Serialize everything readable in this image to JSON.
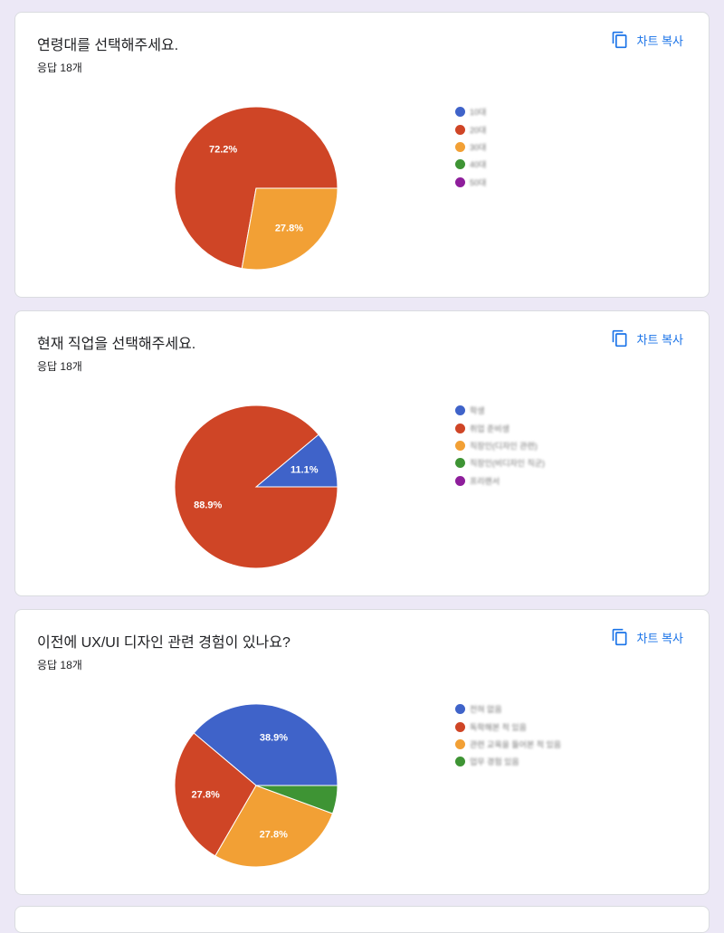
{
  "copy_label": "차트 복사",
  "cards": [
    {
      "title": "연령대를 선택해주세요.",
      "count": "응답 18개",
      "chart_data": {
        "type": "pie",
        "categories": [
          "10대",
          "20대",
          "30대",
          "40대",
          "50대"
        ],
        "values": [
          0,
          72.2,
          27.8,
          0,
          0
        ],
        "slice_labels": [
          "",
          "72.2%",
          "27.8%",
          "",
          ""
        ],
        "colors": [
          "#3f63c9",
          "#cf4526",
          "#f2a035",
          "#3e9434",
          "#8e1e9b"
        ],
        "legend_position": "right"
      }
    },
    {
      "title": "현재 직업을 선택해주세요.",
      "count": "응답 18개",
      "chart_data": {
        "type": "pie",
        "categories": [
          "학생",
          "취업 준비생",
          "직장인(디자인 관련)",
          "직장인(비디자인 직군)",
          "프리랜서"
        ],
        "values": [
          11.1,
          88.9,
          0,
          0,
          0
        ],
        "slice_labels": [
          "11.1%",
          "88.9%",
          "",
          "",
          ""
        ],
        "colors": [
          "#3f63c9",
          "#cf4526",
          "#f2a035",
          "#3e9434",
          "#8e1e9b"
        ],
        "legend_position": "right"
      }
    },
    {
      "title": "이전에 UX/UI 디자인 관련 경험이 있나요?",
      "count": "응답 18개",
      "chart_data": {
        "type": "pie",
        "categories": [
          "전혀 없음",
          "독학해본 적 있음",
          "관련 교육을 들어본 적 있음",
          "업무 경험 있음"
        ],
        "values": [
          38.9,
          27.8,
          27.8,
          5.6
        ],
        "slice_labels": [
          "38.9%",
          "27.8%",
          "27.8%",
          ""
        ],
        "colors": [
          "#3f63c9",
          "#cf4526",
          "#f2a035",
          "#3e9434"
        ],
        "legend_position": "right"
      }
    }
  ]
}
